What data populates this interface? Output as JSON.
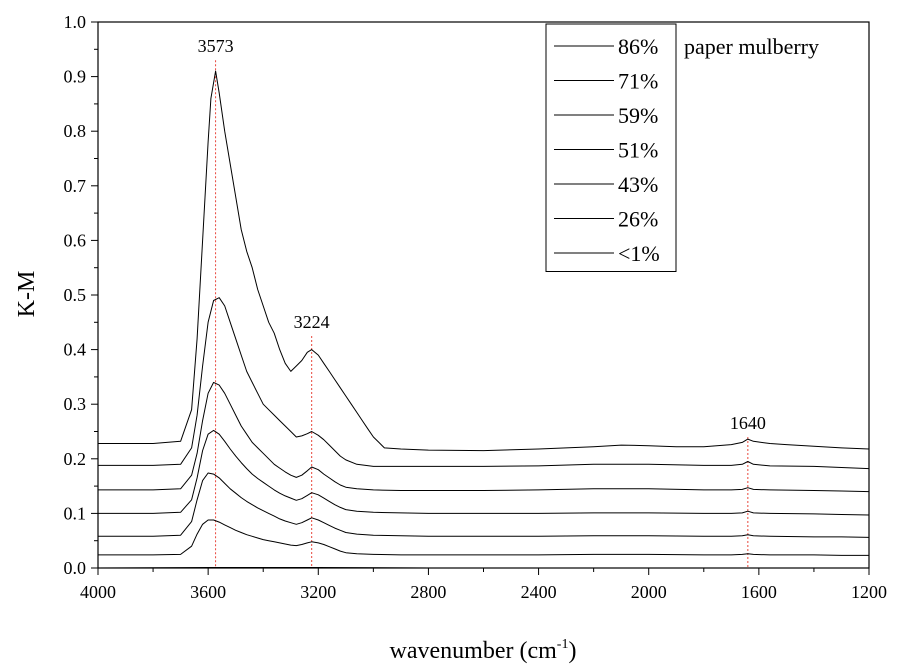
{
  "chart_data": {
    "type": "line",
    "title": "",
    "xlabel": "wavenumber (cm",
    "xlabel_sup": "-1",
    "xlabel_close": ")",
    "ylabel": "K-M",
    "xlim": [
      4000,
      1200
    ],
    "ylim": [
      0.0,
      1.0
    ],
    "x_reversed": true,
    "xticks": [
      4000,
      3600,
      3200,
      2800,
      2400,
      2000,
      1600,
      1200
    ],
    "yticks": [
      "0.0",
      "0.1",
      "0.2",
      "0.3",
      "0.4",
      "0.5",
      "0.6",
      "0.7",
      "0.8",
      "0.9",
      "1.0"
    ],
    "grid": false,
    "legend": {
      "title": "paper mulberry",
      "placement": "top-right",
      "entries": [
        "86%",
        "71%",
        "59%",
        "51%",
        "43%",
        "26%",
        "<1%"
      ]
    },
    "annotations": [
      {
        "label": "3573",
        "x": 3573,
        "y_top": 0.93
      },
      {
        "label": "3224",
        "x": 3224,
        "y_top": 0.425
      },
      {
        "label": "1640",
        "x": 1640,
        "y_top": 0.24
      }
    ],
    "line_color": "#000000",
    "marker_color": "#e8473c",
    "series": [
      {
        "name": "86%",
        "x": [
          4000,
          3800,
          3700,
          3660,
          3640,
          3620,
          3600,
          3590,
          3573,
          3560,
          3540,
          3520,
          3500,
          3480,
          3460,
          3440,
          3420,
          3400,
          3380,
          3360,
          3340,
          3320,
          3300,
          3280,
          3260,
          3240,
          3224,
          3200,
          3180,
          3160,
          3140,
          3120,
          3100,
          3080,
          3060,
          3040,
          3020,
          3000,
          2980,
          2960,
          2900,
          2800,
          2600,
          2400,
          2200,
          2100,
          2000,
          1900,
          1800,
          1700,
          1660,
          1640,
          1620,
          1560,
          1500,
          1400,
          1300,
          1200
        ],
        "y": [
          0.228,
          0.228,
          0.232,
          0.29,
          0.42,
          0.6,
          0.78,
          0.86,
          0.91,
          0.87,
          0.8,
          0.74,
          0.68,
          0.62,
          0.58,
          0.55,
          0.51,
          0.48,
          0.45,
          0.43,
          0.4,
          0.375,
          0.36,
          0.37,
          0.38,
          0.395,
          0.4,
          0.39,
          0.375,
          0.36,
          0.345,
          0.33,
          0.315,
          0.3,
          0.285,
          0.27,
          0.255,
          0.24,
          0.23,
          0.22,
          0.218,
          0.216,
          0.215,
          0.218,
          0.222,
          0.225,
          0.224,
          0.222,
          0.222,
          0.226,
          0.23,
          0.236,
          0.232,
          0.228,
          0.226,
          0.223,
          0.22,
          0.218
        ]
      },
      {
        "name": "71%",
        "x": [
          4000,
          3800,
          3700,
          3660,
          3640,
          3620,
          3600,
          3580,
          3560,
          3540,
          3520,
          3500,
          3480,
          3460,
          3440,
          3420,
          3400,
          3380,
          3360,
          3340,
          3320,
          3300,
          3280,
          3260,
          3240,
          3224,
          3200,
          3180,
          3160,
          3140,
          3120,
          3100,
          3060,
          3000,
          2900,
          2800,
          2600,
          2400,
          2200,
          2000,
          1800,
          1700,
          1660,
          1640,
          1620,
          1560,
          1400,
          1300,
          1200
        ],
        "y": [
          0.188,
          0.188,
          0.19,
          0.22,
          0.28,
          0.37,
          0.45,
          0.49,
          0.495,
          0.48,
          0.45,
          0.42,
          0.39,
          0.36,
          0.34,
          0.32,
          0.3,
          0.29,
          0.28,
          0.27,
          0.26,
          0.25,
          0.24,
          0.242,
          0.246,
          0.25,
          0.243,
          0.235,
          0.225,
          0.215,
          0.205,
          0.198,
          0.19,
          0.186,
          0.186,
          0.186,
          0.186,
          0.187,
          0.19,
          0.19,
          0.188,
          0.188,
          0.19,
          0.195,
          0.19,
          0.187,
          0.186,
          0.184,
          0.182
        ]
      },
      {
        "name": "59%",
        "x": [
          4000,
          3800,
          3700,
          3660,
          3640,
          3620,
          3600,
          3580,
          3560,
          3540,
          3520,
          3500,
          3480,
          3460,
          3440,
          3420,
          3400,
          3380,
          3360,
          3340,
          3320,
          3300,
          3280,
          3260,
          3240,
          3224,
          3200,
          3180,
          3160,
          3140,
          3120,
          3100,
          3060,
          3000,
          2900,
          2800,
          2600,
          2400,
          2200,
          2000,
          1800,
          1700,
          1660,
          1640,
          1620,
          1560,
          1400,
          1300,
          1200
        ],
        "y": [
          0.143,
          0.143,
          0.145,
          0.17,
          0.21,
          0.27,
          0.32,
          0.34,
          0.335,
          0.32,
          0.3,
          0.28,
          0.26,
          0.245,
          0.23,
          0.22,
          0.21,
          0.2,
          0.19,
          0.183,
          0.176,
          0.17,
          0.166,
          0.17,
          0.178,
          0.185,
          0.18,
          0.172,
          0.165,
          0.158,
          0.152,
          0.148,
          0.145,
          0.143,
          0.142,
          0.142,
          0.142,
          0.143,
          0.145,
          0.145,
          0.143,
          0.143,
          0.144,
          0.147,
          0.144,
          0.143,
          0.142,
          0.141,
          0.14
        ]
      },
      {
        "name": "51%",
        "x": [
          4000,
          3800,
          3700,
          3660,
          3640,
          3620,
          3600,
          3580,
          3560,
          3540,
          3520,
          3500,
          3480,
          3460,
          3440,
          3420,
          3400,
          3380,
          3360,
          3340,
          3320,
          3300,
          3280,
          3260,
          3240,
          3224,
          3200,
          3180,
          3160,
          3140,
          3120,
          3100,
          3060,
          3000,
          2900,
          2800,
          2600,
          2400,
          2200,
          2000,
          1800,
          1700,
          1660,
          1640,
          1620,
          1560,
          1400,
          1300,
          1200
        ],
        "y": [
          0.1,
          0.1,
          0.102,
          0.125,
          0.165,
          0.215,
          0.245,
          0.252,
          0.245,
          0.232,
          0.218,
          0.205,
          0.193,
          0.182,
          0.172,
          0.164,
          0.157,
          0.15,
          0.143,
          0.137,
          0.132,
          0.128,
          0.124,
          0.127,
          0.133,
          0.138,
          0.134,
          0.128,
          0.122,
          0.116,
          0.111,
          0.107,
          0.104,
          0.102,
          0.101,
          0.1,
          0.1,
          0.1,
          0.101,
          0.101,
          0.1,
          0.1,
          0.101,
          0.104,
          0.101,
          0.1,
          0.099,
          0.098,
          0.097
        ]
      },
      {
        "name": "43%",
        "x": [
          4000,
          3800,
          3700,
          3660,
          3640,
          3620,
          3600,
          3580,
          3560,
          3540,
          3520,
          3500,
          3480,
          3460,
          3440,
          3420,
          3400,
          3380,
          3360,
          3340,
          3320,
          3300,
          3280,
          3260,
          3240,
          3224,
          3200,
          3180,
          3160,
          3140,
          3120,
          3100,
          3060,
          3000,
          2900,
          2800,
          2600,
          2400,
          2200,
          2000,
          1800,
          1700,
          1660,
          1640,
          1620,
          1560,
          1400,
          1300,
          1200
        ],
        "y": [
          0.058,
          0.058,
          0.06,
          0.085,
          0.125,
          0.16,
          0.174,
          0.172,
          0.165,
          0.155,
          0.145,
          0.137,
          0.129,
          0.122,
          0.116,
          0.11,
          0.105,
          0.1,
          0.095,
          0.09,
          0.086,
          0.083,
          0.08,
          0.083,
          0.088,
          0.092,
          0.088,
          0.083,
          0.078,
          0.073,
          0.069,
          0.065,
          0.062,
          0.06,
          0.059,
          0.058,
          0.058,
          0.058,
          0.059,
          0.059,
          0.058,
          0.058,
          0.059,
          0.061,
          0.059,
          0.058,
          0.057,
          0.057,
          0.056
        ]
      },
      {
        "name": "26%",
        "x": [
          4000,
          3800,
          3700,
          3660,
          3640,
          3620,
          3600,
          3580,
          3560,
          3540,
          3520,
          3500,
          3480,
          3460,
          3440,
          3420,
          3400,
          3380,
          3360,
          3340,
          3320,
          3300,
          3280,
          3260,
          3240,
          3224,
          3200,
          3180,
          3160,
          3140,
          3120,
          3100,
          3060,
          3000,
          2900,
          2800,
          2600,
          2400,
          2200,
          2000,
          1800,
          1700,
          1660,
          1640,
          1620,
          1560,
          1400,
          1300,
          1200
        ],
        "y": [
          0.024,
          0.024,
          0.025,
          0.04,
          0.062,
          0.08,
          0.088,
          0.088,
          0.084,
          0.079,
          0.074,
          0.069,
          0.065,
          0.061,
          0.058,
          0.055,
          0.052,
          0.05,
          0.048,
          0.046,
          0.044,
          0.042,
          0.041,
          0.043,
          0.046,
          0.048,
          0.046,
          0.043,
          0.039,
          0.035,
          0.031,
          0.028,
          0.026,
          0.025,
          0.024,
          0.024,
          0.024,
          0.024,
          0.025,
          0.025,
          0.024,
          0.024,
          0.025,
          0.026,
          0.025,
          0.024,
          0.024,
          0.023,
          0.023
        ]
      },
      {
        "name": "<1%",
        "x": [
          4000,
          3600,
          3200,
          2800,
          2400,
          2000,
          1600,
          1200
        ],
        "y": [
          0.0,
          0.001,
          0.001,
          0.0,
          0.0,
          0.0,
          0.0,
          0.0
        ]
      }
    ]
  }
}
